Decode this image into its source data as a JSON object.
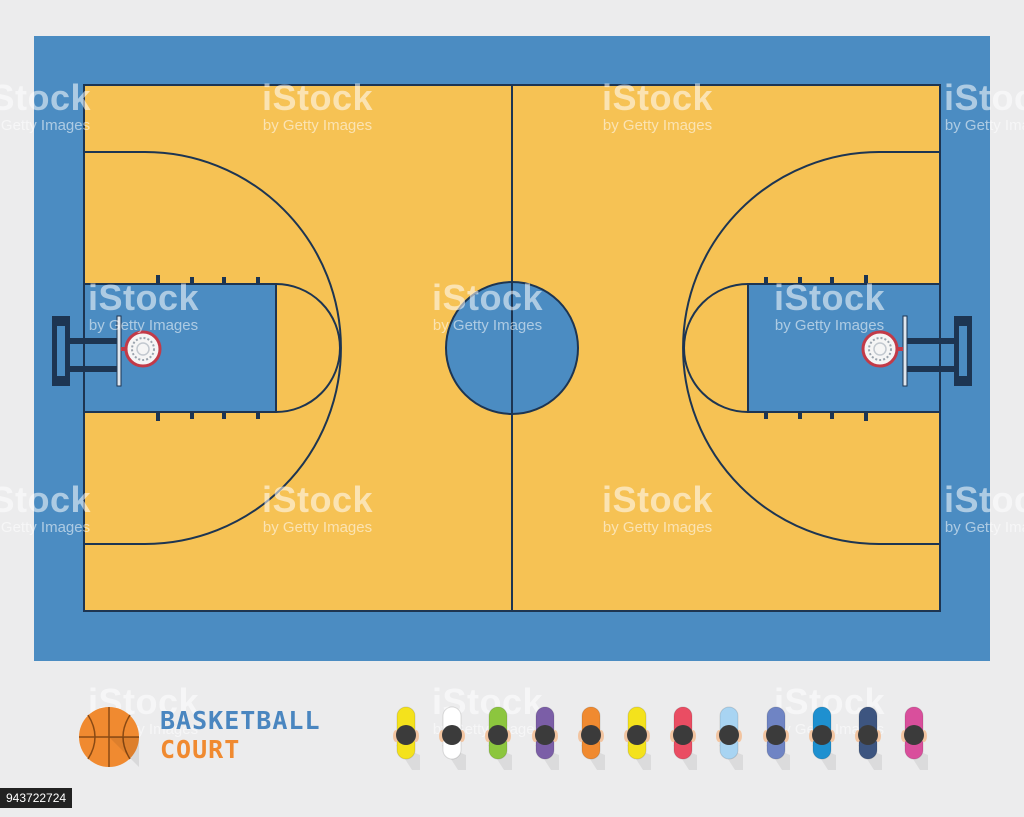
{
  "logo": {
    "line1": "BASKETBALL",
    "line2": "COURT",
    "line1_color": "#4a86c0",
    "line2_color": "#f08a30"
  },
  "court": {
    "surround_color": "#4b8cc2",
    "floor_color": "#f6c254",
    "line_color": "#1d3552",
    "paint_color": "#4b8cc2"
  },
  "watermark": {
    "main": "iStock",
    "sub": "by Getty Images"
  },
  "players": [
    {
      "color": "#f4e21c"
    },
    {
      "color": "#ffffff"
    },
    {
      "color": "#8cc63e"
    },
    {
      "color": "#7b5ea7"
    },
    {
      "color": "#f08a30"
    },
    {
      "color": "#f4e21c"
    },
    {
      "color": "#ea4d63"
    },
    {
      "color": "#a8d4f2"
    },
    {
      "color": "#6f84c4"
    },
    {
      "color": "#1e90d0"
    },
    {
      "color": "#3d5580"
    },
    {
      "color": "#d94f9c"
    }
  ],
  "stock_id": "943722724"
}
